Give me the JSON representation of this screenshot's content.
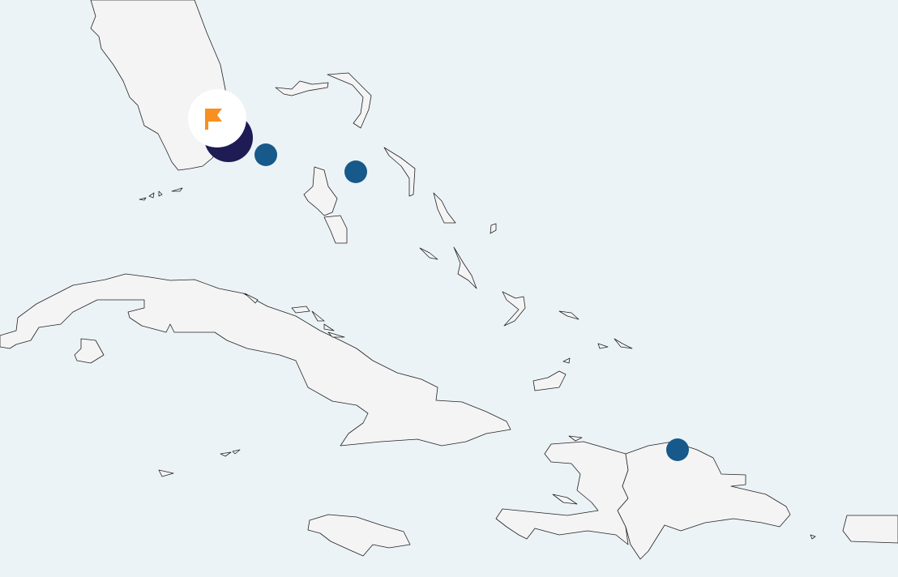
{
  "map": {
    "colors": {
      "water": "#ebf3f7",
      "land": "#f4f4f4",
      "border": "#222222",
      "marker": "#16598a",
      "selected_marker": "#1f1b54",
      "flag": "#f7901e",
      "flag_badge": "#ffffff"
    },
    "markers": [
      {
        "name": "marker-miami-selected",
        "icon": "flag-icon",
        "selected": true
      },
      {
        "name": "marker-bimini",
        "selected": false
      },
      {
        "name": "marker-nassau",
        "selected": false
      },
      {
        "name": "marker-puerto-plata",
        "selected": false
      }
    ]
  }
}
